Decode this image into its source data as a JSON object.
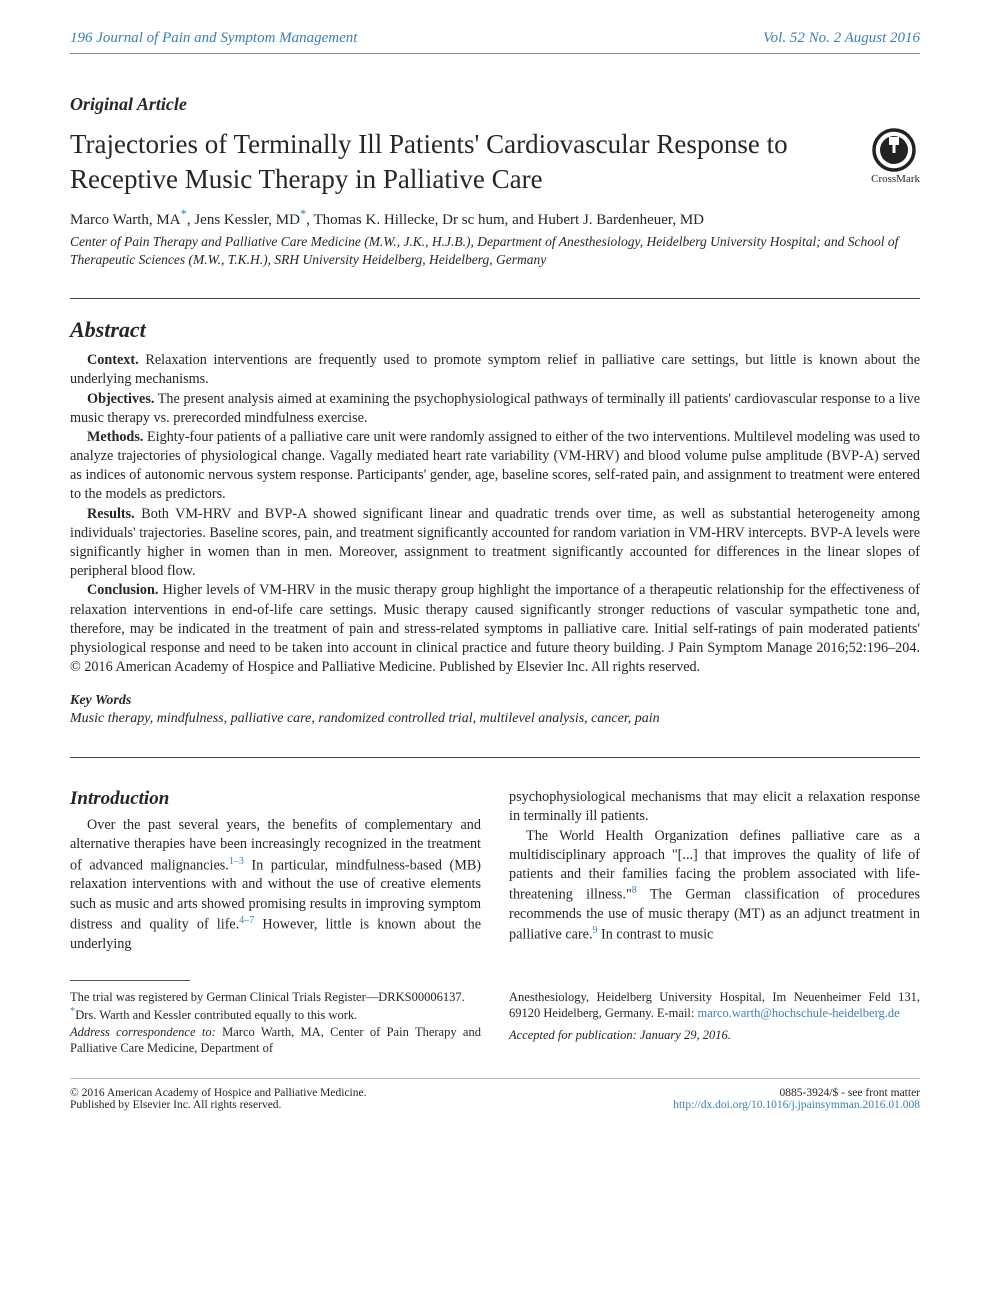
{
  "header": {
    "left": "196   Journal of Pain and Symptom Management",
    "right": "Vol. 52 No. 2 August 2016"
  },
  "article_type": "Original Article",
  "title": "Trajectories of Terminally Ill Patients' Cardiovascular Response to Receptive Music Therapy in Palliative Care",
  "crossmark_label": "CrossMark",
  "authors_html": "Marco Warth, MA<sup>*</sup>, Jens Kessler, MD<sup>*</sup>, Thomas K. Hillecke, Dr sc hum, and Hubert J. Bardenheuer, MD",
  "affiliation": "Center of Pain Therapy and Palliative Care Medicine (M.W., J.K., H.J.B.), Department of Anesthesiology, Heidelberg University Hospital; and School of Therapeutic Sciences (M.W., T.K.H.), SRH University Heidelberg, Heidelberg, Germany",
  "abstract": {
    "heading": "Abstract",
    "context_label": "Context.",
    "context_text": " Relaxation interventions are frequently used to promote symptom relief in palliative care settings, but little is known about the underlying mechanisms.",
    "objectives_label": "Objectives.",
    "objectives_text": " The present analysis aimed at examining the psychophysiological pathways of terminally ill patients' cardiovascular response to a live music therapy vs. prerecorded mindfulness exercise.",
    "methods_label": "Methods.",
    "methods_text": " Eighty-four patients of a palliative care unit were randomly assigned to either of the two interventions. Multilevel modeling was used to analyze trajectories of physiological change. Vagally mediated heart rate variability (VM-HRV) and blood volume pulse amplitude (BVP-A) served as indices of autonomic nervous system response. Participants' gender, age, baseline scores, self-rated pain, and assignment to treatment were entered to the models as predictors.",
    "results_label": "Results.",
    "results_text": " Both VM-HRV and BVP-A showed significant linear and quadratic trends over time, as well as substantial heterogeneity among individuals' trajectories. Baseline scores, pain, and treatment significantly accounted for random variation in VM-HRV intercepts. BVP-A levels were significantly higher in women than in men. Moreover, assignment to treatment significantly accounted for differences in the linear slopes of peripheral blood flow.",
    "conclusion_label": "Conclusion.",
    "conclusion_text": " Higher levels of VM-HRV in the music therapy group highlight the importance of a therapeutic relationship for the effectiveness of relaxation interventions in end-of-life care settings. Music therapy caused significantly stronger reductions of vascular sympathetic tone and, therefore, may be indicated in the treatment of pain and stress-related symptoms in palliative care. Initial self-ratings of pain moderated patients' physiological response and need to be taken into account in clinical practice and future theory building.   J Pain Symptom Manage 2016;52:196–204. © 2016 American Academy of Hospice and Palliative Medicine. Published by Elsevier Inc. All rights reserved."
  },
  "keywords": {
    "label": "Key Words",
    "text": "Music therapy, mindfulness, palliative care, randomized controlled trial, multilevel analysis, cancer, pain"
  },
  "intro": {
    "heading": "Introduction",
    "p1_a": "Over the past several years, the benefits of complementary and alternative therapies have been increasingly recognized in the treatment of advanced malignancies.",
    "p1_ref1": "1–3",
    "p1_b": " In particular, mindfulness-based (MB) relaxation interventions with and without the use of creative elements such as music and arts showed promising results in improving symptom distress and quality of life.",
    "p1_ref2": "4–7",
    "p1_c": " However, little is known about the underlying",
    "p2": "psychophysiological mechanisms that may elicit a relaxation response in terminally ill patients.",
    "p3_a": "The World Health Organization defines palliative care as a multidisciplinary approach \"[...] that improves the quality of life of patients and their families facing the problem associated with life-threatening illness.\"",
    "p3_ref1": "8",
    "p3_b": " The German classification of procedures recommends the use of music therapy (MT) as an adjunct treatment in palliative care.",
    "p3_ref2": "9",
    "p3_c": " In contrast to music"
  },
  "footnotes": {
    "trial": "The trial was registered by German Clinical Trials Register—DRKS00006137.",
    "equal": "Drs. Warth and Kessler contributed equally to this work.",
    "address_label": "Address correspondence to:",
    "address_text": " Marco Warth, MA, Center of Pain Therapy and Palliative Care Medicine, Department of",
    "address_cont": "Anesthesiology, Heidelberg University Hospital, Im Neuenheimer Feld 131, 69120 Heidelberg, Germany. E-mail: ",
    "email": "marco.warth@hochschule-heidelberg.de",
    "accepted": "Accepted for publication: January 29, 2016."
  },
  "bottom": {
    "left1": "© 2016 American Academy of Hospice and Palliative Medicine.",
    "left2": "Published by Elsevier Inc. All rights reserved.",
    "right1": "0885-3924/$ - see front matter",
    "doi": "http://dx.doi.org/10.1016/j.jpainsymman.2016.01.008"
  },
  "colors": {
    "link": "#3b7fb5",
    "text": "#262626"
  }
}
